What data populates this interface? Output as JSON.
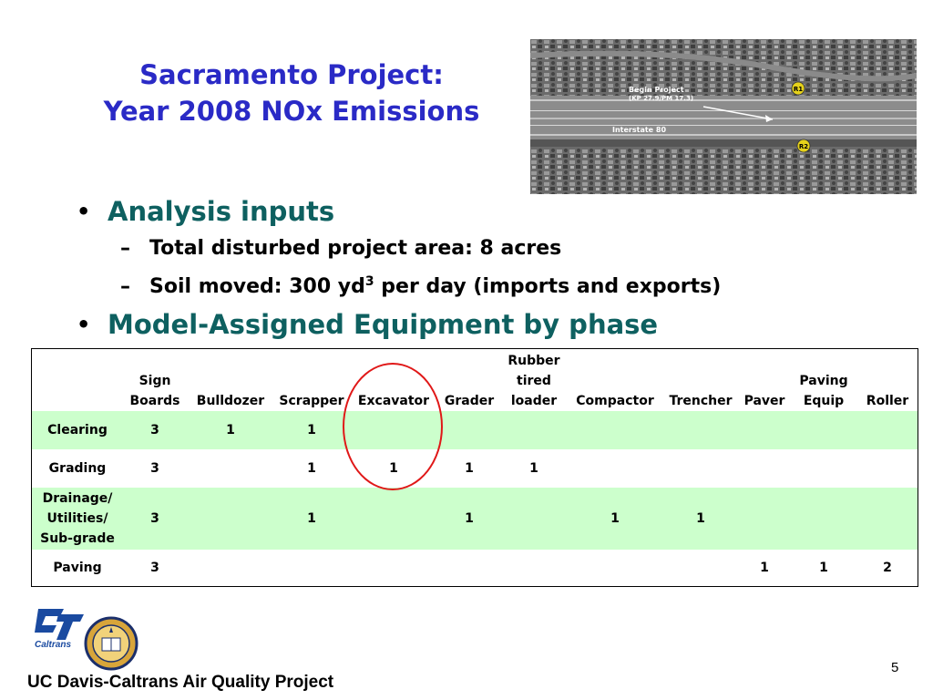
{
  "title": {
    "line1": "Sacramento Project:",
    "line2": "Year 2008 NOx Emissions"
  },
  "aerial_photo": {
    "label_begin_line1": "Begin Project",
    "label_begin_line2": "(KP 27.9/PM 17.3)",
    "label_highway": "Interstate 80",
    "marker_r1": "R1",
    "marker_r2": "R2"
  },
  "bullets": {
    "analysis_heading": "Analysis inputs",
    "area_item": "Total disturbed project area:  8 acres",
    "soil_item_prefix": "Soil moved:  300 yd",
    "soil_item_sup": "3",
    "soil_item_suffix": " per day (imports and exports)",
    "equipment_heading": "Model-Assigned Equipment by phase"
  },
  "table": {
    "headers": [
      "",
      "Sign Boards",
      "Bulldozer",
      "Scrapper",
      "Excavator",
      "Grader",
      "Rubber tired loader",
      "Compactor",
      "Trencher",
      "Paver",
      "Paving Equip",
      "Roller"
    ],
    "rows": [
      [
        "Clearing",
        "3",
        "1",
        "1",
        "",
        "",
        "",
        "",
        "",
        "",
        "",
        ""
      ],
      [
        "Grading",
        "3",
        "",
        "1",
        "1",
        "1",
        "1",
        "",
        "",
        "",
        "",
        ""
      ],
      [
        "Drainage/ Utilities/ Sub-grade",
        "3",
        "",
        "1",
        "",
        "1",
        "",
        "1",
        "1",
        "",
        "",
        ""
      ],
      [
        "Paving",
        "3",
        "",
        "",
        "",
        "",
        "",
        "",
        "",
        "1",
        "1",
        "2"
      ]
    ]
  },
  "logos": {
    "caltrans_text": "Caltrans"
  },
  "footer": {
    "org": "UC Davis-Caltrans Air Quality Project",
    "page_number": "5"
  },
  "colors": {
    "title_blue": "#2a2ac6",
    "heading_teal": "#0e6060",
    "row_shade": "#ccffcc",
    "highlight_circle": "#e01818",
    "caltrans_blue": "#1a4aa0"
  }
}
